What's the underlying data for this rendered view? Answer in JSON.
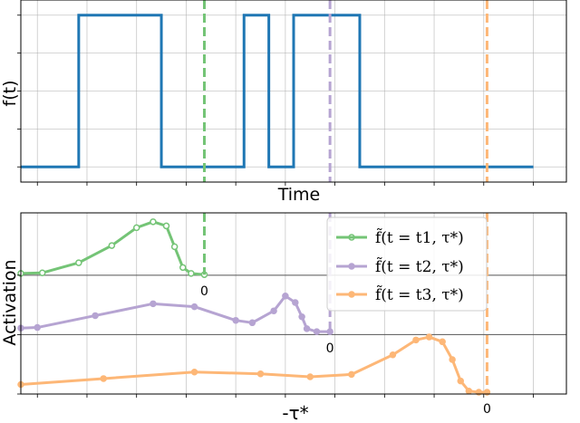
{
  "chart_data": [
    {
      "type": "line",
      "xlabel": "Time",
      "ylabel": "f(t)",
      "xlim": [
        0,
        33
      ],
      "ylim": [
        -0.1,
        1.1
      ],
      "grid": true,
      "x": [
        0,
        3.5,
        3.5,
        8.5,
        8.5,
        13.5,
        13.5,
        15,
        15,
        16.5,
        16.5,
        20.5,
        20.5,
        25.5,
        25.5,
        31
      ],
      "series": [
        {
          "color": "#1f77b4",
          "values": [
            0,
            0,
            1,
            1,
            0,
            0,
            1,
            1,
            0,
            0,
            1,
            1,
            0,
            0,
            0,
            0
          ]
        }
      ],
      "vlines": [
        {
          "x": 11.1,
          "color": "#74c476"
        },
        {
          "x": 18.7,
          "color": "#b6a4d2"
        },
        {
          "x": 28.2,
          "color": "#fdb777"
        }
      ]
    },
    {
      "type": "line",
      "xlabel": "-τ*",
      "ylabel": "Activation",
      "xlim": [
        0,
        33
      ],
      "ylim": [
        0,
        3.05
      ],
      "grid": true,
      "legend_position": "top-right",
      "series": [
        {
          "name": "f̃(t = t1, τ*)",
          "color": "#74c476",
          "vline_x": 11.1,
          "zero_label": "0",
          "points": [
            [
              0,
              2.03
            ],
            [
              1.3,
              2.04
            ],
            [
              3.5,
              2.21
            ],
            [
              5.5,
              2.5
            ],
            [
              7,
              2.8
            ],
            [
              8,
              2.9
            ],
            [
              8.8,
              2.83
            ],
            [
              9.3,
              2.48
            ],
            [
              9.8,
              2.13
            ],
            [
              10.3,
              2.03
            ],
            [
              11.1,
              2.01
            ]
          ]
        },
        {
          "name": "f̃(t = t2, τ*)",
          "color": "#b6a4d2",
          "vline_x": 18.7,
          "zero_label": "0",
          "points": [
            [
              0,
              1.11
            ],
            [
              1,
              1.12
            ],
            [
              4.5,
              1.32
            ],
            [
              8,
              1.52
            ],
            [
              10.5,
              1.47
            ],
            [
              13,
              1.24
            ],
            [
              14,
              1.2
            ],
            [
              15.3,
              1.4
            ],
            [
              16,
              1.65
            ],
            [
              16.6,
              1.54
            ],
            [
              17,
              1.3
            ],
            [
              17.3,
              1.1
            ],
            [
              17.9,
              1.05
            ],
            [
              18.7,
              1.05
            ]
          ]
        },
        {
          "name": "f̃(t = t3, τ*)",
          "color": "#fdb777",
          "vline_x": 28.2,
          "zero_label": "0",
          "points": [
            [
              0,
              0.16
            ],
            [
              5,
              0.26
            ],
            [
              10.5,
              0.37
            ],
            [
              14.5,
              0.34
            ],
            [
              17.5,
              0.29
            ],
            [
              20,
              0.33
            ],
            [
              22.5,
              0.66
            ],
            [
              23.9,
              0.91
            ],
            [
              24.7,
              0.96
            ],
            [
              25.5,
              0.88
            ],
            [
              26.1,
              0.58
            ],
            [
              26.6,
              0.22
            ],
            [
              27.1,
              0.05
            ],
            [
              27.7,
              0.03
            ],
            [
              28.2,
              0.03
            ]
          ]
        }
      ]
    }
  ]
}
